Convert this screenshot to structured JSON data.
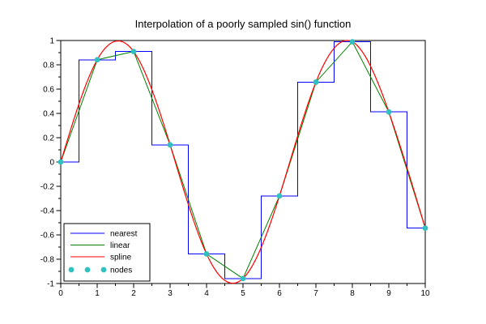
{
  "figure": {
    "background": "#ffffff",
    "axis_color": "#000000",
    "tick_label_color": "#000000"
  },
  "chart_data": {
    "type": "line",
    "title": "Interpolation of a poorly sampled sin() function",
    "xlabel": "",
    "ylabel": "",
    "xlim": [
      0,
      10
    ],
    "ylim": [
      -1,
      1
    ],
    "grid": false,
    "x_major_ticks": [
      0,
      1,
      2,
      3,
      4,
      5,
      6,
      7,
      8,
      9,
      10
    ],
    "x_tick_labels": [
      "0",
      "1",
      "2",
      "3",
      "4",
      "5",
      "6",
      "7",
      "8",
      "9",
      "10"
    ],
    "x_minor_ticks": [
      0.5,
      1.5,
      2.5,
      3.5,
      4.5,
      5.5,
      6.5,
      7.5,
      8.5,
      9.5
    ],
    "y_major_ticks": [
      -1,
      -0.8,
      -0.6,
      -0.4,
      -0.2,
      0,
      0.2,
      0.4,
      0.6,
      0.8,
      1
    ],
    "y_tick_labels": [
      "-1",
      "-0.8",
      "-0.6",
      "-0.4",
      "-0.2",
      "0",
      "0.2",
      "0.4",
      "0.6",
      "0.8",
      "1"
    ],
    "y_minor_ticks": [
      -0.9,
      -0.7,
      -0.5,
      -0.3,
      -0.1,
      0.1,
      0.3,
      0.5,
      0.7,
      0.9
    ],
    "nodes_x": [
      0,
      1,
      2,
      3,
      4,
      5,
      6,
      7,
      8,
      9,
      10
    ],
    "nodes_y": [
      0,
      0.8415,
      0.9093,
      0.1411,
      -0.7568,
      -0.959,
      -0.2794,
      0.657,
      0.9894,
      0.4121,
      -0.544
    ],
    "series": [
      {
        "name": "nearest",
        "style": "step-nearest",
        "color": "#0000ff"
      },
      {
        "name": "linear",
        "style": "linear",
        "color": "#008000"
      },
      {
        "name": "spline",
        "style": "cubic-spline",
        "color": "#ff0000"
      },
      {
        "name": "nodes",
        "style": "points",
        "color": "#30c0c0"
      }
    ],
    "legend": {
      "position": "bottom-left",
      "entries": [
        "nearest",
        "linear",
        "spline",
        "nodes"
      ]
    }
  }
}
